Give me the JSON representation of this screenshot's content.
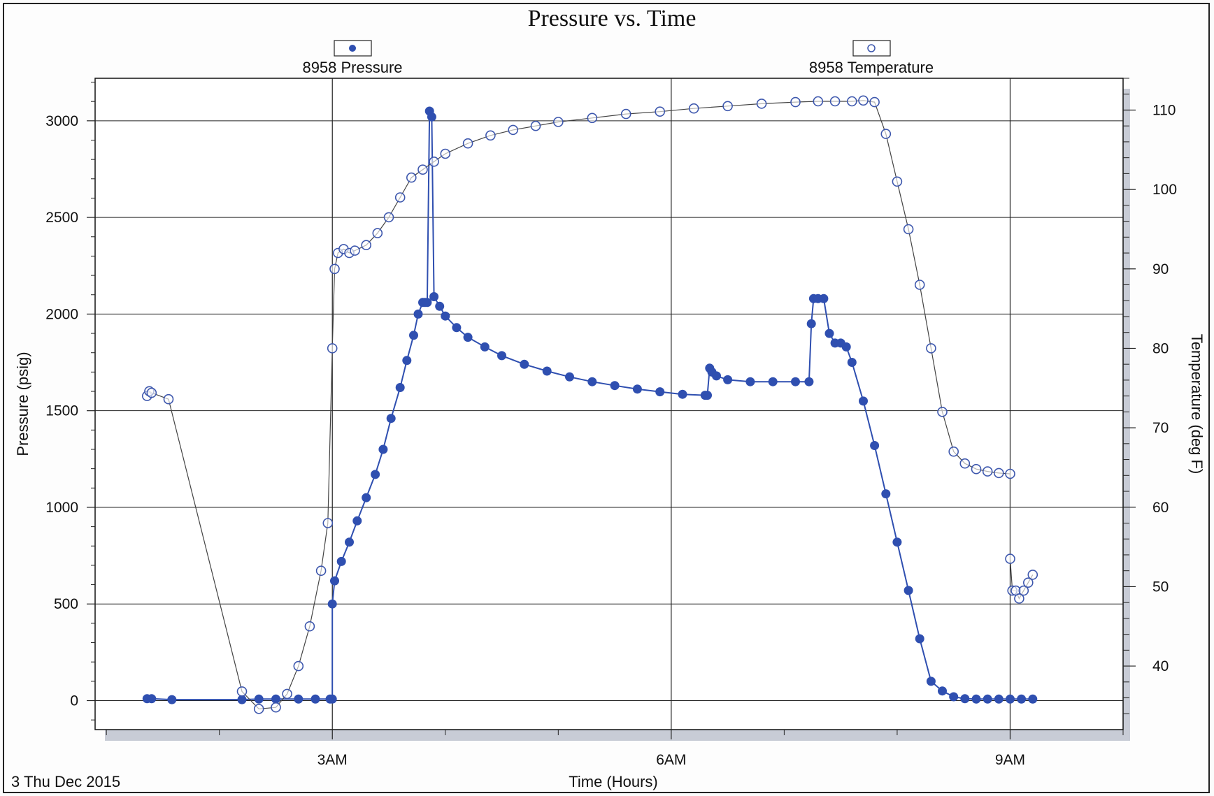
{
  "chart_data": {
    "type": "scatter",
    "title": "Pressure vs. Time",
    "xlabel": "Time (Hours)",
    "ylabel": "Pressure (psig)",
    "y2label": "Temperature (deg F)",
    "date_label": "3 Thu Dec 2015",
    "xlim": [
      0.9,
      10.0
    ],
    "ylim": [
      -150,
      3220
    ],
    "y2lim": [
      32,
      114
    ],
    "x_ticks": [
      {
        "v": 3,
        "label": "3AM"
      },
      {
        "v": 6,
        "label": "6AM"
      },
      {
        "v": 9,
        "label": "9AM"
      }
    ],
    "y_ticks": [
      0,
      500,
      1000,
      1500,
      2000,
      2500,
      3000
    ],
    "y2_ticks": [
      40,
      50,
      60,
      70,
      80,
      90,
      100,
      110
    ],
    "grid": true,
    "legend_position": "top",
    "series": [
      {
        "name": "8958 Pressure",
        "axis": "left",
        "marker": "filled-circle",
        "color": "#2f4fb0",
        "x": [
          1.36,
          1.4,
          1.58,
          2.2,
          2.35,
          2.5,
          2.7,
          2.85,
          2.98,
          3.0,
          3.0,
          3.02,
          3.08,
          3.15,
          3.22,
          3.3,
          3.38,
          3.45,
          3.52,
          3.6,
          3.66,
          3.72,
          3.76,
          3.8,
          3.82,
          3.84,
          3.86,
          3.88,
          3.9,
          3.95,
          4.0,
          4.1,
          4.2,
          4.35,
          4.5,
          4.7,
          4.9,
          5.1,
          5.3,
          5.5,
          5.7,
          5.9,
          6.1,
          6.3,
          6.32,
          6.34,
          6.36,
          6.4,
          6.5,
          6.7,
          6.9,
          7.1,
          7.22,
          7.24,
          7.26,
          7.3,
          7.35,
          7.4,
          7.45,
          7.5,
          7.55,
          7.6,
          7.7,
          7.8,
          7.9,
          8.0,
          8.1,
          8.2,
          8.3,
          8.4,
          8.5,
          8.6,
          8.7,
          8.8,
          8.9,
          9.0,
          9.1,
          9.2
        ],
        "y": [
          10,
          10,
          5,
          5,
          8,
          8,
          8,
          8,
          8,
          8,
          500,
          620,
          720,
          820,
          930,
          1050,
          1170,
          1300,
          1460,
          1620,
          1760,
          1890,
          2000,
          2060,
          2060,
          2060,
          3050,
          3020,
          2090,
          2040,
          1990,
          1930,
          1880,
          1830,
          1785,
          1740,
          1705,
          1675,
          1650,
          1630,
          1612,
          1598,
          1585,
          1580,
          1580,
          1720,
          1700,
          1680,
          1660,
          1650,
          1650,
          1650,
          1650,
          1950,
          2080,
          2080,
          2080,
          1900,
          1850,
          1850,
          1830,
          1750,
          1550,
          1320,
          1070,
          820,
          570,
          320,
          100,
          50,
          20,
          10,
          8,
          8,
          8,
          8,
          8,
          8
        ]
      },
      {
        "name": "8958 Temperature",
        "axis": "right",
        "marker": "open-circle",
        "color": "#3d57ad",
        "x": [
          1.36,
          1.38,
          1.4,
          1.55,
          2.2,
          2.35,
          2.5,
          2.6,
          2.7,
          2.8,
          2.9,
          2.96,
          3.0,
          3.02,
          3.05,
          3.1,
          3.15,
          3.2,
          3.3,
          3.4,
          3.5,
          3.6,
          3.7,
          3.8,
          3.9,
          4.0,
          4.2,
          4.4,
          4.6,
          4.8,
          5.0,
          5.3,
          5.6,
          5.9,
          6.2,
          6.5,
          6.8,
          7.1,
          7.3,
          7.45,
          7.6,
          7.7,
          7.8,
          7.9,
          8.0,
          8.1,
          8.2,
          8.3,
          8.4,
          8.5,
          8.6,
          8.7,
          8.8,
          8.9,
          9.0,
          9.0,
          9.02,
          9.05,
          9.08,
          9.12,
          9.16,
          9.2
        ],
        "y": [
          74,
          74.6,
          74.4,
          73.6,
          36.8,
          34.6,
          34.8,
          36.5,
          40,
          45,
          52,
          58,
          80,
          90,
          92,
          92.5,
          92,
          92.3,
          93,
          94.5,
          96.5,
          99,
          101.5,
          102.5,
          103.5,
          104.5,
          105.8,
          106.8,
          107.5,
          108,
          108.5,
          109,
          109.5,
          109.8,
          110.2,
          110.5,
          110.8,
          111,
          111.1,
          111.1,
          111.1,
          111.2,
          111,
          107,
          101,
          95,
          88,
          80,
          72,
          67,
          65.5,
          64.8,
          64.5,
          64.3,
          64.2,
          53.5,
          49.5,
          49.5,
          48.5,
          49.5,
          50.5,
          51.5
        ]
      }
    ]
  }
}
